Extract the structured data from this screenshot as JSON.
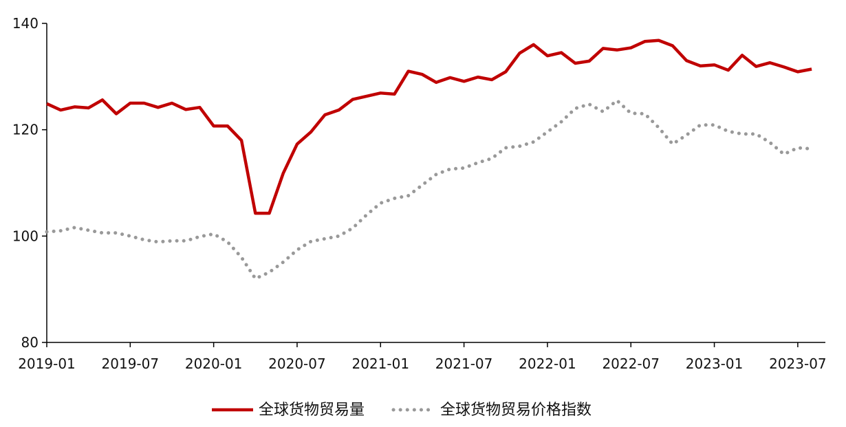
{
  "chart_data": {
    "type": "line",
    "title": "",
    "xlabel": "",
    "ylabel": "",
    "ylim": [
      80,
      140
    ],
    "yticks": [
      80,
      100,
      120,
      140
    ],
    "x_start": "2019-01",
    "x_end": "2023-08",
    "xticks": [
      "2019-01",
      "2019-07",
      "2020-01",
      "2020-07",
      "2021-01",
      "2021-07",
      "2022-01",
      "2022-07",
      "2023-01",
      "2023-07"
    ],
    "grid": false,
    "legend_position": "bottom",
    "series": [
      {
        "name": "全球货物贸易量",
        "color": "#c00000",
        "style": "solid",
        "x": [
          "2019-01",
          "2019-02",
          "2019-03",
          "2019-04",
          "2019-05",
          "2019-06",
          "2019-07",
          "2019-08",
          "2019-09",
          "2019-10",
          "2019-11",
          "2019-12",
          "2020-01",
          "2020-02",
          "2020-03",
          "2020-04",
          "2020-05",
          "2020-06",
          "2020-07",
          "2020-08",
          "2020-09",
          "2020-10",
          "2020-11",
          "2020-12",
          "2021-01",
          "2021-02",
          "2021-03",
          "2021-04",
          "2021-05",
          "2021-06",
          "2021-07",
          "2021-08",
          "2021-09",
          "2021-10",
          "2021-11",
          "2021-12",
          "2022-01",
          "2022-02",
          "2022-03",
          "2022-04",
          "2022-05",
          "2022-06",
          "2022-07",
          "2022-08",
          "2022-09",
          "2022-10",
          "2022-11",
          "2022-12",
          "2023-01",
          "2023-02",
          "2023-03",
          "2023-04",
          "2023-05",
          "2023-06",
          "2023-07",
          "2023-08"
        ],
        "values": [
          124.9,
          123.7,
          124.3,
          124.1,
          125.6,
          123.0,
          125.0,
          125.0,
          124.2,
          125.0,
          123.8,
          124.2,
          120.7,
          120.7,
          118.0,
          104.3,
          104.3,
          111.8,
          117.3,
          119.6,
          122.8,
          123.7,
          125.7,
          126.3,
          126.9,
          126.7,
          131.0,
          130.4,
          128.9,
          129.8,
          129.1,
          129.9,
          129.4,
          130.9,
          134.4,
          136.0,
          133.9,
          134.5,
          132.5,
          132.9,
          135.3,
          135.0,
          135.4,
          136.6,
          136.8,
          135.8,
          133.0,
          132.0,
          132.2,
          131.2,
          134.0,
          131.9,
          132.6,
          131.8,
          130.9,
          131.4
        ]
      },
      {
        "name": "全球货物贸易价格指数",
        "color": "#999999",
        "style": "dotted",
        "x": [
          "2019-01",
          "2019-02",
          "2019-03",
          "2019-04",
          "2019-05",
          "2019-06",
          "2019-07",
          "2019-08",
          "2019-09",
          "2019-10",
          "2019-11",
          "2019-12",
          "2020-01",
          "2020-02",
          "2020-03",
          "2020-04",
          "2020-05",
          "2020-06",
          "2020-07",
          "2020-08",
          "2020-09",
          "2020-10",
          "2020-11",
          "2020-12",
          "2021-01",
          "2021-02",
          "2021-03",
          "2021-04",
          "2021-05",
          "2021-06",
          "2021-07",
          "2021-08",
          "2021-09",
          "2021-10",
          "2021-11",
          "2021-12",
          "2022-01",
          "2022-02",
          "2022-03",
          "2022-04",
          "2022-05",
          "2022-06",
          "2022-07",
          "2022-08",
          "2022-09",
          "2022-10",
          "2022-11",
          "2022-12",
          "2023-01",
          "2023-02",
          "2023-03",
          "2023-04",
          "2023-05",
          "2023-06",
          "2023-07",
          "2023-08"
        ],
        "values": [
          100.8,
          101.0,
          101.6,
          101.1,
          100.6,
          100.6,
          100.0,
          99.3,
          98.9,
          99.1,
          99.1,
          99.9,
          100.4,
          98.9,
          96.0,
          92.0,
          93.2,
          95.1,
          97.4,
          99.0,
          99.5,
          100.0,
          101.5,
          104.0,
          106.2,
          107.1,
          107.6,
          109.6,
          111.6,
          112.6,
          112.8,
          113.8,
          114.6,
          116.6,
          116.9,
          117.7,
          119.6,
          121.5,
          124.0,
          124.8,
          123.4,
          125.5,
          123.1,
          123.0,
          120.4,
          117.3,
          119.0,
          120.9,
          120.9,
          119.7,
          119.2,
          119.2,
          117.6,
          115.4,
          116.6,
          116.4
        ]
      }
    ]
  }
}
